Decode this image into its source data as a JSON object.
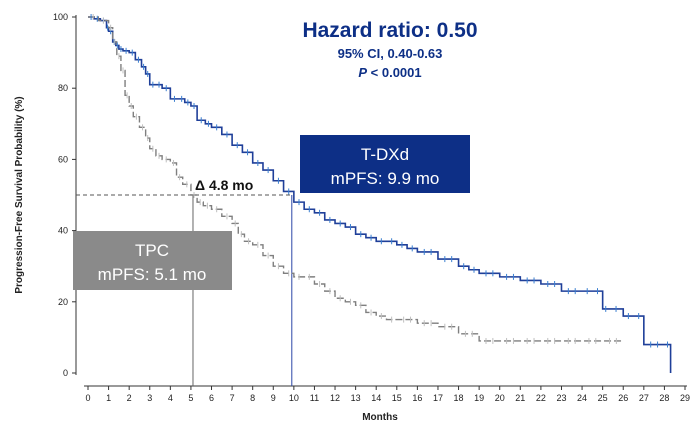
{
  "chart_data": {
    "type": "line",
    "xlabel": "Months",
    "ylabel": "Progression-Free Survival Probability (%)",
    "xlim": [
      0,
      29
    ],
    "ylim": [
      0,
      100
    ],
    "x_ticks": [
      "0",
      "1",
      "2",
      "3",
      "4",
      "5",
      "6",
      "7",
      "8",
      "9",
      "10",
      "11",
      "12",
      "13",
      "14",
      "15",
      "16",
      "17",
      "18",
      "19",
      "20",
      "21",
      "22",
      "23",
      "24",
      "25",
      "26",
      "27",
      "28",
      "29"
    ],
    "y_ticks": [
      "0",
      "20",
      "40",
      "60",
      "80",
      "100"
    ],
    "series": [
      {
        "name": "T-DXd",
        "color": "#1f3f99",
        "censor_color": "#3a7fd0",
        "x": [
          0,
          0.3,
          0.6,
          0.9,
          1.0,
          1.2,
          1.35,
          1.5,
          1.7,
          2.0,
          2.3,
          2.6,
          2.8,
          3.0,
          3.3,
          3.6,
          4.0,
          4.4,
          4.7,
          5.0,
          5.3,
          5.7,
          6.0,
          6.5,
          7.0,
          7.5,
          8.0,
          8.5,
          9.0,
          9.5,
          10.0,
          10.5,
          11.0,
          11.5,
          12.0,
          12.5,
          13.0,
          13.5,
          14.0,
          14.5,
          15.0,
          15.5,
          16.0,
          17.0,
          18.0,
          18.5,
          19.0,
          20.0,
          21.0,
          22.0,
          23.0,
          24.0,
          24.5,
          25.0,
          25.3,
          26.0,
          26.5,
          27.0,
          28.0,
          28.3
        ],
        "y": [
          100,
          99.5,
          99,
          97,
          96,
          93,
          92,
          91,
          90.5,
          90,
          88,
          86,
          84,
          81,
          81,
          80,
          77,
          77,
          76,
          75,
          71,
          70,
          69,
          67,
          64,
          62,
          59,
          57,
          54,
          51,
          48,
          46,
          45,
          43,
          42,
          41,
          39,
          38,
          37,
          37,
          36,
          35,
          34,
          32,
          30,
          29,
          28,
          27,
          26,
          25,
          23,
          23,
          23,
          18,
          18,
          16,
          16,
          8,
          8,
          0
        ],
        "median_pfs": 9.9,
        "label_line1": "T-DXd",
        "label_line2": "mPFS: 9.9 mo"
      },
      {
        "name": "TPC",
        "color": "#7f7f7f",
        "censor_color": "#bfbfbf",
        "x": [
          0,
          0.5,
          1.0,
          1.2,
          1.4,
          1.6,
          1.8,
          2.0,
          2.2,
          2.5,
          2.8,
          3.0,
          3.3,
          3.6,
          4.0,
          4.3,
          4.6,
          5.0,
          5.3,
          5.6,
          6.0,
          6.5,
          7.0,
          7.3,
          7.6,
          8.0,
          8.5,
          9.0,
          9.5,
          10.0,
          10.5,
          11.0,
          11.5,
          12.0,
          12.5,
          13.0,
          13.5,
          14.0,
          14.5,
          15.0,
          16.0,
          17.0,
          18.0,
          19.0,
          20.0,
          21.0,
          22.0,
          23.0,
          24.0,
          25.0,
          26.0
        ],
        "y": [
          100,
          99,
          97,
          93,
          89,
          85,
          78,
          75,
          72,
          69,
          66,
          63,
          61,
          60,
          59,
          55,
          53,
          50,
          48,
          47,
          46,
          44,
          42,
          39,
          37,
          36,
          33,
          30,
          28,
          27,
          27,
          25,
          23,
          21,
          20,
          19,
          17,
          16,
          15,
          15,
          14,
          13,
          11,
          9,
          9,
          9,
          9,
          9,
          9,
          9,
          9
        ],
        "median_pfs": 5.1,
        "label_line1": "TPC",
        "label_line2": "mPFS: 5.1 mo"
      }
    ],
    "median_reference_y": 50,
    "annotations": {
      "hazard_prefix": "Hazard ratio",
      "hazard_value": ": 0.50",
      "ci": "95% CI, 0.40-0.63",
      "p_italic": "P",
      "p_rest": " < 0.0001",
      "delta": "Δ 4.8 mo"
    },
    "colors": {
      "tdxd_box": "#0d2f86",
      "tpc_box": "#8a8a8a",
      "hazard_text": "#0d2f86",
      "ref_line": "#555555"
    },
    "grid": false
  }
}
